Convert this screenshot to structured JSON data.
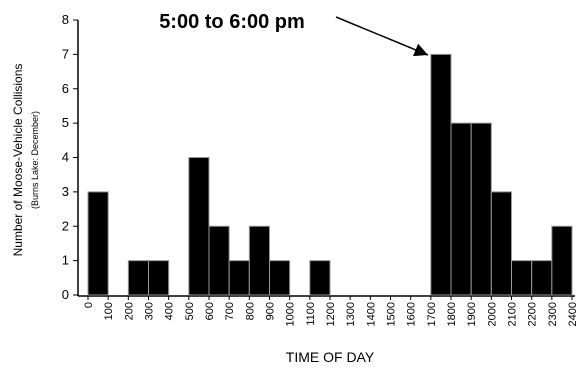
{
  "chart_data": {
    "type": "histogram",
    "ylabel": "Number of Moose-Vehicle Collisions",
    "ylabel_sub": "(Burns Lake: December)",
    "xlabel": "TIME OF DAY",
    "annotation": "5:00 to 6:00 pm",
    "bins": [
      0,
      100,
      200,
      300,
      400,
      500,
      600,
      700,
      800,
      900,
      1000,
      1100,
      1200,
      1300,
      1400,
      1500,
      1600,
      1700,
      1800,
      1900,
      2000,
      2100,
      2200,
      2300,
      2400
    ],
    "counts": [
      3,
      0,
      1,
      1,
      0,
      4,
      2,
      1,
      2,
      1,
      0,
      1,
      0,
      0,
      0,
      0,
      0,
      7,
      5,
      5,
      3,
      1,
      1,
      2
    ],
    "color": "#000000",
    "xlim": [
      0,
      2400
    ],
    "xticks": [
      0,
      100,
      200,
      300,
      400,
      500,
      600,
      700,
      800,
      900,
      1000,
      1100,
      1200,
      1300,
      1400,
      1500,
      1600,
      1700,
      1800,
      1900,
      2000,
      2100,
      2200,
      2300,
      2400
    ],
    "ylim": [
      0,
      8
    ],
    "yticks": [
      0,
      1,
      2,
      3,
      4,
      5,
      6,
      7,
      8
    ]
  }
}
